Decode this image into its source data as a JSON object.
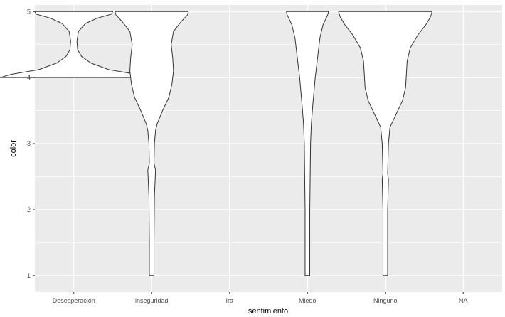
{
  "chart_data": {
    "type": "violin",
    "title": "",
    "xlabel": "sentimiento",
    "ylabel": "color",
    "categories": [
      "Desesperación",
      "inseguridad",
      "Ira",
      "Miedo",
      "Ninguno",
      "NA"
    ],
    "yticks": [
      1,
      2,
      3,
      4,
      5
    ],
    "ylim": [
      0.75,
      5.1
    ],
    "grid": true,
    "panel_background": "#ebebeb",
    "grid_color": "#ffffff",
    "violin_fill": "#ffffff",
    "violin_stroke": "#333333",
    "violins": [
      {
        "category": "Desesperación",
        "y_range": [
          4,
          5
        ],
        "profile": [
          [
            4.0,
            0.95
          ],
          [
            4.05,
            0.8
          ],
          [
            4.12,
            0.45
          ],
          [
            4.22,
            0.22
          ],
          [
            4.32,
            0.1
          ],
          [
            4.42,
            0.05
          ],
          [
            4.55,
            0.04
          ],
          [
            4.7,
            0.06
          ],
          [
            4.82,
            0.15
          ],
          [
            4.9,
            0.3
          ],
          [
            4.96,
            0.48
          ],
          [
            5.0,
            0.5
          ]
        ]
      },
      {
        "category": "inseguridad",
        "y_range": [
          1,
          5
        ],
        "profile": [
          [
            1.0,
            0.03
          ],
          [
            1.5,
            0.03
          ],
          [
            2.2,
            0.035
          ],
          [
            2.6,
            0.05
          ],
          [
            2.7,
            0.03
          ],
          [
            3.0,
            0.035
          ],
          [
            3.2,
            0.05
          ],
          [
            3.3,
            0.07
          ],
          [
            3.5,
            0.14
          ],
          [
            3.7,
            0.22
          ],
          [
            3.9,
            0.26
          ],
          [
            4.1,
            0.28
          ],
          [
            4.3,
            0.27
          ],
          [
            4.5,
            0.25
          ],
          [
            4.7,
            0.28
          ],
          [
            4.85,
            0.38
          ],
          [
            4.95,
            0.46
          ],
          [
            5.0,
            0.47
          ]
        ]
      },
      {
        "category": "Miedo",
        "y_range": [
          1,
          5
        ],
        "profile": [
          [
            1.0,
            0.03
          ],
          [
            2.0,
            0.03
          ],
          [
            3.0,
            0.04
          ],
          [
            3.3,
            0.05
          ],
          [
            3.6,
            0.07
          ],
          [
            4.0,
            0.1
          ],
          [
            4.3,
            0.13
          ],
          [
            4.6,
            0.16
          ],
          [
            4.8,
            0.2
          ],
          [
            4.95,
            0.26
          ],
          [
            5.0,
            0.27
          ]
        ]
      },
      {
        "category": "Ninguno",
        "y_range": [
          1,
          5
        ],
        "profile": [
          [
            1.0,
            0.03
          ],
          [
            1.5,
            0.03
          ],
          [
            2.0,
            0.03
          ],
          [
            2.45,
            0.04
          ],
          [
            2.55,
            0.03
          ],
          [
            3.0,
            0.04
          ],
          [
            3.25,
            0.06
          ],
          [
            3.45,
            0.14
          ],
          [
            3.65,
            0.22
          ],
          [
            3.85,
            0.26
          ],
          [
            4.05,
            0.27
          ],
          [
            4.25,
            0.28
          ],
          [
            4.45,
            0.32
          ],
          [
            4.65,
            0.42
          ],
          [
            4.8,
            0.52
          ],
          [
            4.92,
            0.58
          ],
          [
            5.0,
            0.6
          ]
        ]
      }
    ]
  }
}
